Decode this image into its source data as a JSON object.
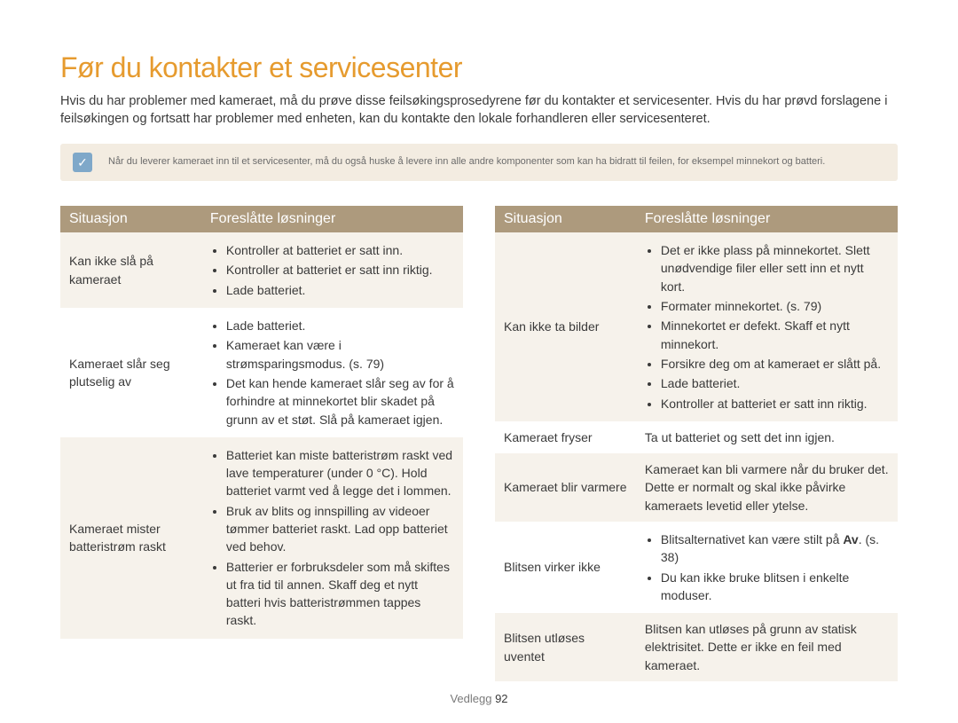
{
  "colors": {
    "heading": "#e69b2f",
    "body_text": "#3a3a3a",
    "note_bg": "#f3ece1",
    "note_icon_bg": "#7fa8c9",
    "note_text": "#6b6b6b",
    "th_bg": "#ad9a7d",
    "row_alt_bg": "#f6f2eb",
    "footer_label": "#7a7a7a"
  },
  "typography": {
    "h1_size": 32,
    "intro_size": 14.5,
    "note_size": 11,
    "body_size": 14,
    "footer_size": 13
  },
  "layout": {
    "situation_col_width_pct": 35
  },
  "title": "Før du kontakter et servicesenter",
  "intro": "Hvis du har problemer med kameraet, må du prøve disse feilsøkingsprosedyrene før du kontakter et servicesenter. Hvis du har prøvd forslagene i feilsøkingen og fortsatt har problemer med enheten, kan du kontakte den lokale forhandleren eller servicesenteret.",
  "note_icon_glyph": "✓",
  "note": "Når du leverer kameraet inn til et servicesenter, må du også huske å levere inn alle andre komponenter som kan ha bidratt til feilen, for eksempel minnekort og batteri.",
  "headers": {
    "situation": "Situasjon",
    "solutions": "Foreslåtte løsninger"
  },
  "left_rows": [
    {
      "situation": "Kan ikke slå på kameraet",
      "solutions": [
        "Kontroller at batteriet er satt inn.",
        "Kontroller at batteriet er satt inn riktig.",
        "Lade batteriet."
      ]
    },
    {
      "situation": "Kameraet slår seg plutselig av",
      "solutions": [
        "Lade batteriet.",
        "Kameraet kan være i strømsparingsmodus. (s. 79)",
        "Det kan hende kameraet slår seg av for å forhindre at minnekortet blir skadet på grunn av et støt. Slå på kameraet igjen."
      ]
    },
    {
      "situation": "Kameraet mister batteristrøm raskt",
      "solutions": [
        "Batteriet kan miste batteristrøm raskt ved lave temperaturer (under 0 °C). Hold batteriet varmt ved å legge det i lommen.",
        "Bruk av blits og innspilling av videoer tømmer batteriet raskt. Lad opp batteriet ved behov.",
        "Batterier er forbruksdeler som må skiftes ut fra tid til annen. Skaff deg et nytt batteri hvis batteristrømmen tappes raskt."
      ]
    }
  ],
  "right_rows": [
    {
      "situation": "Kan ikke ta bilder",
      "solutions": [
        "Det er ikke plass på minnekortet. Slett unødvendige filer eller sett inn et nytt kort.",
        "Formater minnekortet. (s. 79)",
        "Minnekortet er defekt. Skaff et nytt minnekort.",
        "Forsikre deg om at kameraet er slått på.",
        "Lade batteriet.",
        "Kontroller at batteriet er satt inn riktig."
      ]
    },
    {
      "situation": "Kameraet fryser",
      "solution_text": "Ta ut batteriet og sett det inn igjen."
    },
    {
      "situation": "Kameraet blir varmere",
      "solution_text": "Kameraet kan bli varmere når du bruker det. Dette er normalt og skal ikke påvirke kameraets levetid eller ytelse."
    },
    {
      "situation": "Blitsen virker ikke",
      "solutions_html": "<ul class='sol'><li>Blitsalternativet kan være stilt på <b>Av</b>. (s. 38)</li><li>Du kan ikke bruke blitsen i enkelte moduser.</li></ul>"
    },
    {
      "situation": "Blitsen utløses uventet",
      "solution_text": "Blitsen kan utløses på grunn av statisk elektrisitet. Dette er ikke en feil med kameraet."
    }
  ],
  "footer": {
    "label": "Vedlegg",
    "page": "92"
  }
}
